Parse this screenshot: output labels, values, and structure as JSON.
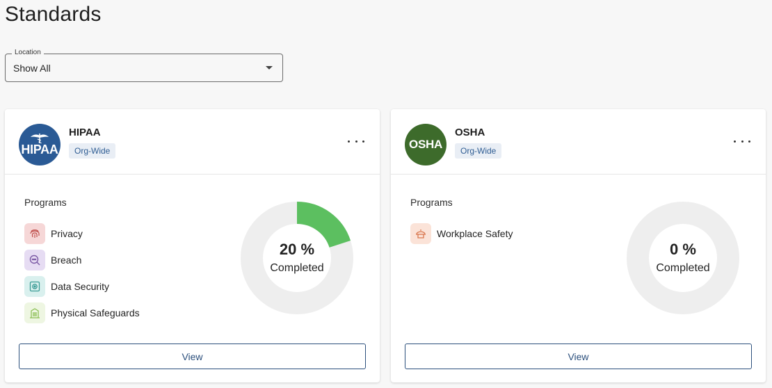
{
  "page": {
    "title": "Standards"
  },
  "filter": {
    "legend": "Location",
    "value": "Show All"
  },
  "cards": [
    {
      "logo_text": "HIPAA",
      "logo_color": "#2a5a95",
      "title": "HIPAA",
      "badge": "Org-Wide",
      "programs_label": "Programs",
      "programs": [
        {
          "label": "Privacy",
          "icon": "fingerprint-icon",
          "bg": "#f6d7d7",
          "color": "#c0504d"
        },
        {
          "label": "Breach",
          "icon": "magnifier-icon",
          "bg": "#e6dcf3",
          "color": "#7d5ba6"
        },
        {
          "label": "Data Security",
          "icon": "safe-icon",
          "bg": "#d9f0ee",
          "color": "#3a9b95"
        },
        {
          "label": "Physical Safeguards",
          "icon": "building-icon",
          "bg": "#eef6e2",
          "color": "#8cbf55"
        }
      ],
      "progress_percent": 20,
      "progress_text": "20 %",
      "progress_label": "Completed",
      "progress_color": "#5cbf60",
      "view_label": "View"
    },
    {
      "logo_text": "OSHA",
      "logo_color": "#3d6b2b",
      "title": "OSHA",
      "badge": "Org-Wide",
      "programs_label": "Programs",
      "programs": [
        {
          "label": "Workplace Safety",
          "icon": "hardhat-icon",
          "bg": "#fbe3d8",
          "color": "#d9774d"
        }
      ],
      "progress_percent": 0,
      "progress_text": "0 %",
      "progress_label": "Completed",
      "progress_color": "#5cbf60",
      "view_label": "View"
    }
  ]
}
